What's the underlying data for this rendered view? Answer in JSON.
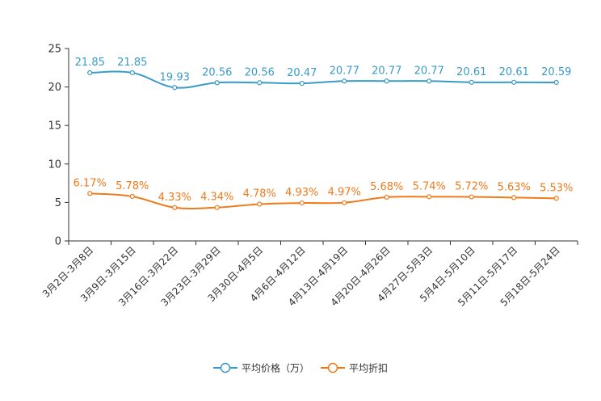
{
  "chart_data": {
    "type": "line",
    "categories": [
      "3月2日-3月8日",
      "3月9日-3月15日",
      "3月16日-3月22日",
      "3月23日-3月29日",
      "3月30日-4月5日",
      "4月6日-4月12日",
      "4月13日-4月19日",
      "4月20日-4月26日",
      "4月27日-5月3日",
      "5月4日-5月10日",
      "5月11日-5月17日",
      "5月18日-5月24日"
    ],
    "series": [
      {
        "name": "平均价格（万）",
        "color": "#3a9bc8",
        "values": [
          21.85,
          21.85,
          19.93,
          20.56,
          20.56,
          20.47,
          20.77,
          20.77,
          20.77,
          20.61,
          20.61,
          20.59
        ],
        "labels": [
          "21.85",
          "21.85",
          "19.93",
          "20.56",
          "20.56",
          "20.47",
          "20.77",
          "20.77",
          "20.77",
          "20.61",
          "20.61",
          "20.59"
        ]
      },
      {
        "name": "平均折扣",
        "color": "#f07a1a",
        "values": [
          6.17,
          5.78,
          4.33,
          4.34,
          4.78,
          4.93,
          4.97,
          5.68,
          5.74,
          5.72,
          5.63,
          5.53
        ],
        "labels": [
          "6.17%",
          "5.78%",
          "4.33%",
          "4.34%",
          "4.78%",
          "4.93%",
          "4.97%",
          "5.68%",
          "5.74%",
          "5.72%",
          "5.63%",
          "5.53%"
        ]
      }
    ],
    "yticks": [
      "0",
      "5",
      "10",
      "15",
      "20",
      "25"
    ],
    "ylim": [
      0,
      25
    ],
    "grid": false,
    "legend_position": "bottom-center"
  }
}
